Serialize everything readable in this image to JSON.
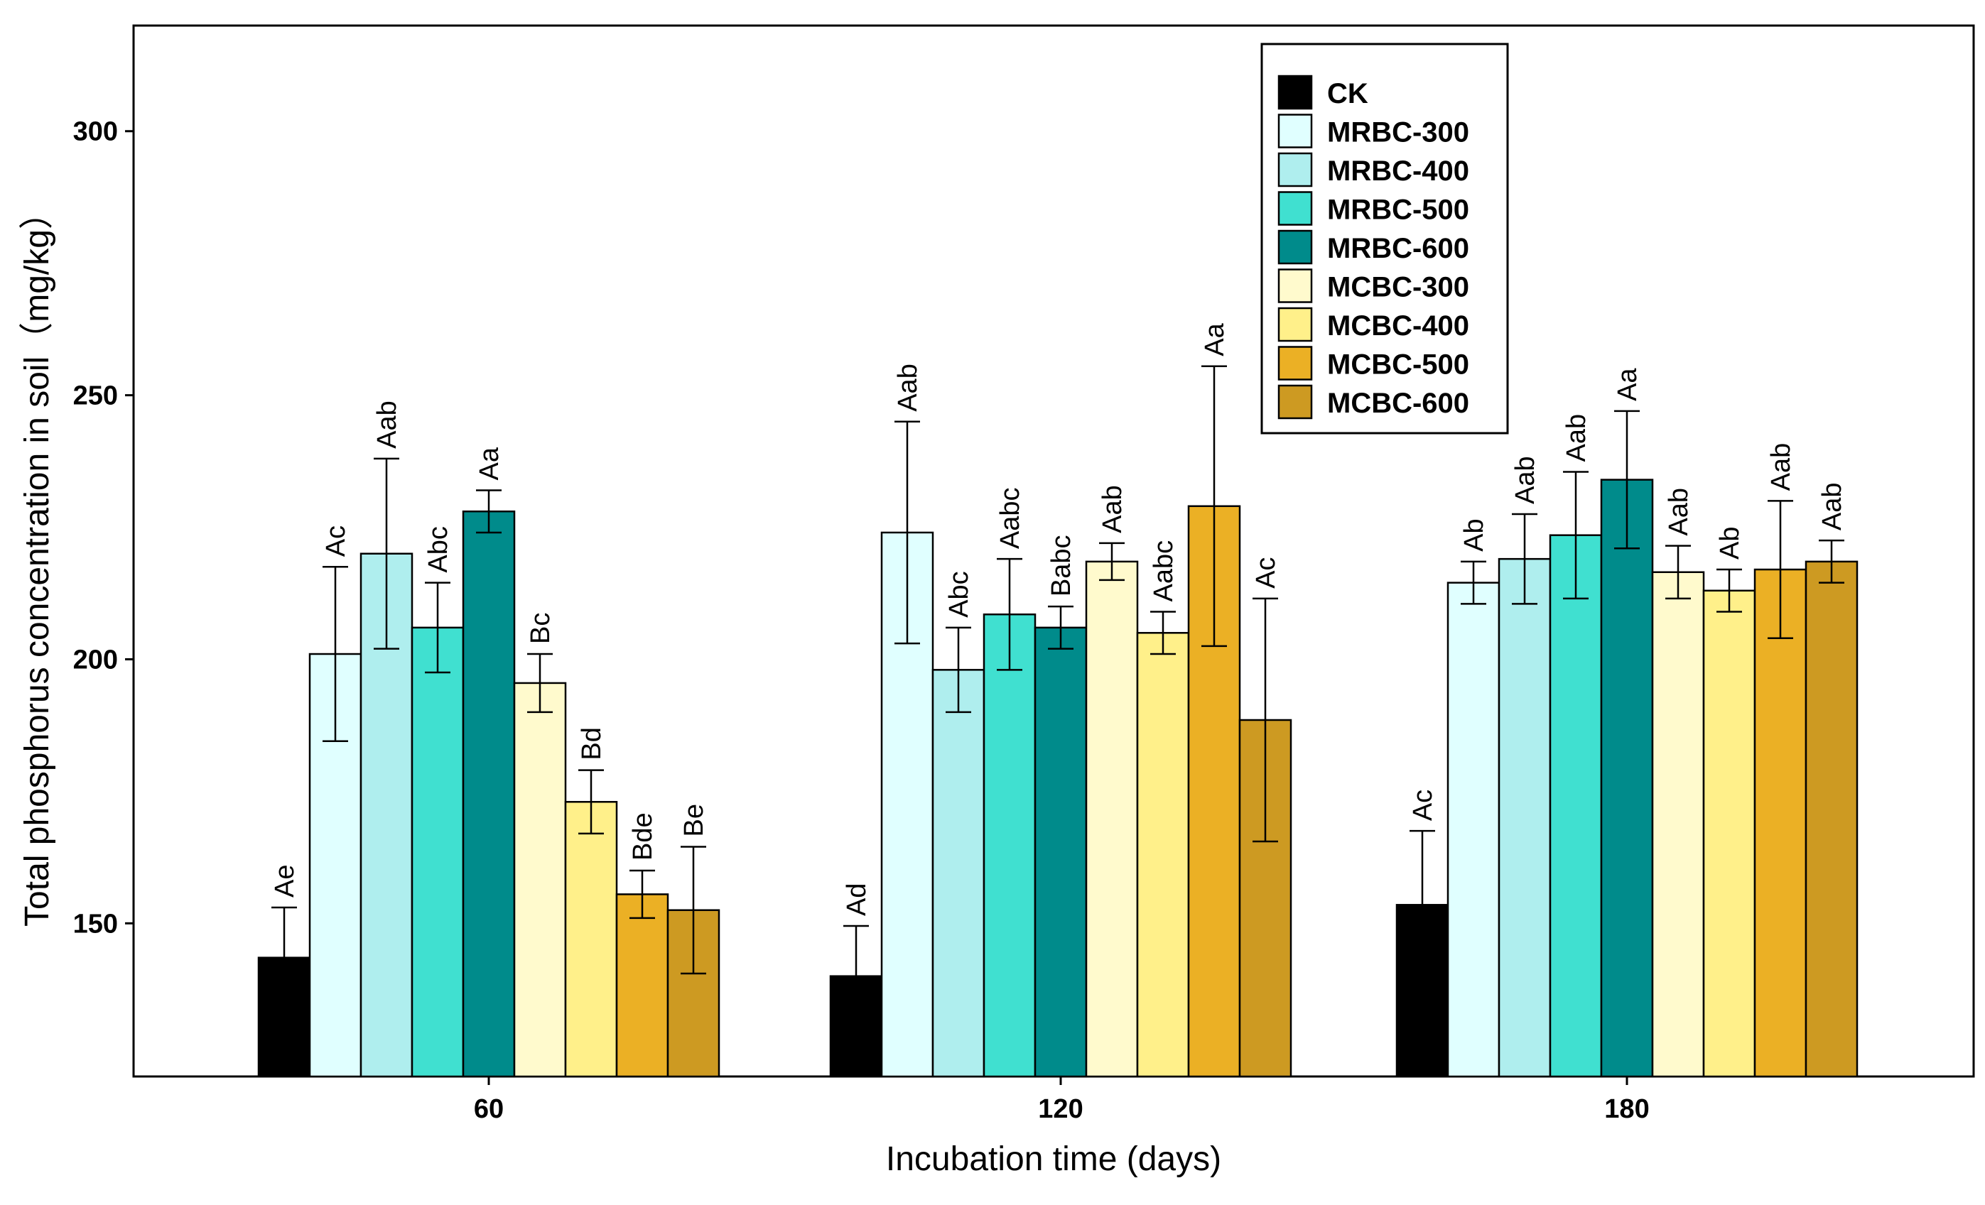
{
  "chart_data": {
    "type": "bar",
    "title": "",
    "xlabel": "Incubation time (days)",
    "ylabel": "Total phosphorus concentration in soil（mg/kg）",
    "ylim": [
      121,
      320
    ],
    "yticks": [
      150,
      200,
      250,
      300
    ],
    "grid": false,
    "legend_position": "top-right",
    "categories": [
      "60",
      "120",
      "180"
    ],
    "series": [
      {
        "name": "CK",
        "color": "#000000",
        "values": [
          143.5,
          140,
          153.5
        ],
        "errors": [
          9.5,
          9.5,
          14
        ],
        "labels": [
          "Ae",
          "Ad",
          "Ac"
        ]
      },
      {
        "name": "MRBC-300",
        "color": "#E0FFFF",
        "values": [
          201,
          224,
          214.5
        ],
        "errors": [
          16.5,
          21,
          4
        ],
        "labels": [
          "Ac",
          "Aab",
          "Ab"
        ]
      },
      {
        "name": "MRBC-400",
        "color": "#AFEEEE",
        "values": [
          220,
          198,
          219
        ],
        "errors": [
          18,
          8,
          8.5
        ],
        "labels": [
          "Aab",
          "Abc",
          "Aab"
        ]
      },
      {
        "name": "MRBC-500",
        "color": "#40E0D0",
        "values": [
          206,
          208.5,
          223.5
        ],
        "errors": [
          8.5,
          10.5,
          12
        ],
        "labels": [
          "Abc",
          "Aabc",
          "Aab"
        ]
      },
      {
        "name": "MRBC-600",
        "color": "#008B8B",
        "values": [
          228,
          206,
          234
        ],
        "errors": [
          4,
          4,
          13
        ],
        "labels": [
          "Aa",
          "Babc",
          "Aa"
        ]
      },
      {
        "name": "MCBC-300",
        "color": "#FFFACD",
        "values": [
          195.5,
          218.5,
          216.5
        ],
        "errors": [
          5.5,
          3.5,
          5
        ],
        "labels": [
          "Bc",
          "Aab",
          "Aab"
        ]
      },
      {
        "name": "MCBC-400",
        "color": "#FFF08A",
        "values": [
          173,
          205,
          213
        ],
        "errors": [
          6,
          4,
          4
        ],
        "labels": [
          "Bd",
          "Aabc",
          "Ab"
        ]
      },
      {
        "name": "MCBC-500",
        "color": "#EBB025",
        "values": [
          155.5,
          229,
          217
        ],
        "errors": [
          4.5,
          26.5,
          13
        ],
        "labels": [
          "Bde",
          "Aa",
          "Aab"
        ]
      },
      {
        "name": "MCBC-600",
        "color": "#CD9A22",
        "values": [
          152.5,
          188.5,
          218.5
        ],
        "errors": [
          12,
          23,
          4
        ],
        "labels": [
          "Be",
          "Ac",
          "Aab"
        ]
      }
    ]
  }
}
